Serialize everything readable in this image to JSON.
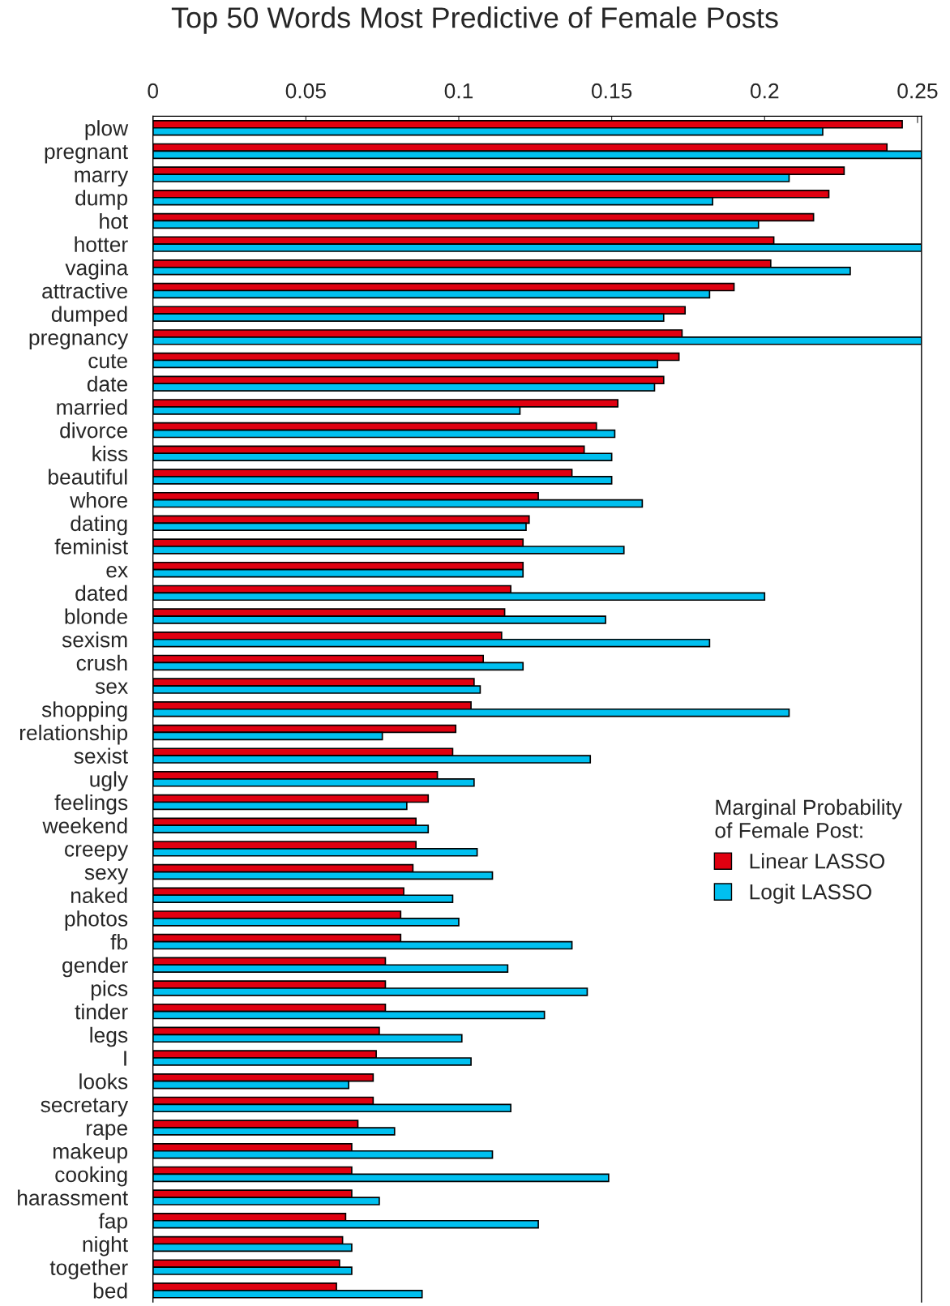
{
  "chart_data": {
    "type": "bar",
    "orientation": "horizontal",
    "title": "Top 50 Words Most Predictive of Female Posts",
    "categories": [
      "plow",
      "pregnant",
      "marry",
      "dump",
      "hot",
      "hotter",
      "vagina",
      "attractive",
      "dumped",
      "pregnancy",
      "cute",
      "date",
      "married",
      "divorce",
      "kiss",
      "beautiful",
      "whore",
      "dating",
      "feminist",
      "ex",
      "dated",
      "blonde",
      "sexism",
      "crush",
      "sex",
      "shopping",
      "relationship",
      "sexist",
      "ugly",
      "feelings",
      "weekend",
      "creepy",
      "sexy",
      "naked",
      "photos",
      "fb",
      "gender",
      "pics",
      "tinder",
      "legs",
      "I",
      "looks",
      "secretary",
      "rape",
      "makeup",
      "cooking",
      "harassment",
      "fap",
      "night",
      "together",
      "bed"
    ],
    "series": [
      {
        "name": "Linear LASSO",
        "color": "#e00010",
        "values": [
          0.245,
          0.24,
          0.226,
          0.221,
          0.216,
          0.203,
          0.202,
          0.19,
          0.174,
          0.173,
          0.172,
          0.167,
          0.152,
          0.145,
          0.141,
          0.137,
          0.126,
          0.123,
          0.121,
          0.121,
          0.117,
          0.115,
          0.114,
          0.108,
          0.105,
          0.104,
          0.099,
          0.098,
          0.093,
          0.09,
          0.086,
          0.086,
          0.085,
          0.082,
          0.081,
          0.081,
          0.076,
          0.076,
          0.076,
          0.074,
          0.073,
          0.072,
          0.072,
          0.067,
          0.065,
          0.065,
          0.065,
          0.063,
          0.062,
          0.061,
          0.06
        ]
      },
      {
        "name": "Logit LASSO",
        "color": "#00c0f0",
        "values": [
          0.219,
          0.2513,
          0.208,
          0.183,
          0.198,
          0.2513,
          0.228,
          0.182,
          0.167,
          0.2513,
          0.165,
          0.164,
          0.12,
          0.151,
          0.15,
          0.15,
          0.16,
          0.122,
          0.154,
          0.121,
          0.2,
          0.148,
          0.182,
          0.121,
          0.107,
          0.208,
          0.075,
          0.143,
          0.105,
          0.083,
          0.09,
          0.106,
          0.111,
          0.098,
          0.1,
          0.137,
          0.116,
          0.142,
          0.128,
          0.101,
          0.104,
          0.064,
          0.117,
          0.079,
          0.111,
          0.149,
          0.074,
          0.126,
          0.065,
          0.065,
          0.088
        ]
      }
    ],
    "xlim": [
      0,
      0.2513
    ],
    "xticks": [
      0,
      0.05,
      0.1,
      0.15,
      0.2,
      0.25
    ],
    "legend_title": "Marginal Probability\nof Female Post:",
    "legend": "center right",
    "grid": false
  }
}
